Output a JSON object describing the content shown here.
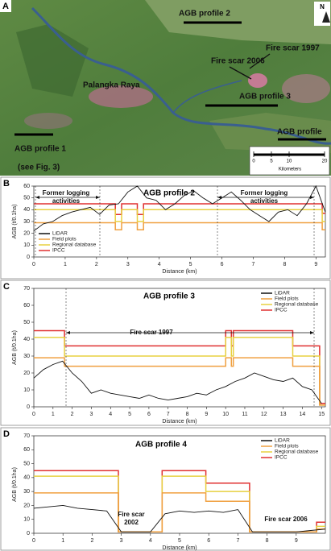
{
  "map": {
    "panel": "A",
    "north": "N",
    "labels": [
      "AGB profile 2",
      "Fire scar 1997",
      "Fire scar 2006",
      "Palangka Raya",
      "AGB profile 3",
      "AGB profile",
      "AGB profile 1",
      "(see Fig. 3)"
    ],
    "scale": {
      "ticks": [
        0,
        5,
        10,
        20
      ],
      "unit": "Kilometers"
    }
  },
  "chart_data": [
    {
      "type": "line",
      "panel": "B",
      "title": "AGB profile 2",
      "xlabel": "Distance (km)",
      "ylabel": "AGB (t/0.1ha)",
      "xlim": [
        0,
        9.3
      ],
      "xticks": [
        0,
        1,
        2,
        3,
        4,
        5,
        6,
        7,
        8,
        9
      ],
      "ylim": [
        0,
        60
      ],
      "yticks": [
        0,
        10,
        20,
        30,
        40,
        50,
        60
      ],
      "legend": "lower left",
      "annotations": [
        "Former logging",
        "activities",
        "Former logging",
        "activities"
      ],
      "series": [
        {
          "name": "LiDAR",
          "color": "#111111",
          "x": [
            0,
            0.3,
            0.6,
            0.9,
            1.2,
            1.5,
            1.8,
            2.1,
            2.4,
            2.7,
            3,
            3.3,
            3.6,
            3.9,
            4.2,
            4.5,
            4.8,
            5.1,
            5.4,
            5.7,
            6,
            6.3,
            6.6,
            6.9,
            7.2,
            7.5,
            7.8,
            8.1,
            8.4,
            8.7,
            9,
            9.3
          ],
          "values": [
            22,
            28,
            30,
            35,
            38,
            40,
            42,
            36,
            44,
            45,
            55,
            60,
            50,
            48,
            40,
            45,
            52,
            56,
            50,
            45,
            50,
            55,
            48,
            40,
            35,
            30,
            38,
            40,
            35,
            45,
            60,
            38
          ]
        },
        {
          "name": "Field plots",
          "color": "#f0a040",
          "x": [
            0,
            2.6,
            2.6,
            2.8,
            2.8,
            3.3,
            3.3,
            3.5,
            3.5,
            9.2,
            9.2,
            9.3
          ],
          "values": [
            29,
            29,
            23,
            23,
            29,
            29,
            23,
            23,
            29,
            29,
            23,
            23
          ]
        },
        {
          "name": "Regional database",
          "color": "#e8d040",
          "x": [
            0,
            2.6,
            2.6,
            2.8,
            2.8,
            3.3,
            3.3,
            3.5,
            3.5,
            9.2,
            9.2,
            9.3
          ],
          "values": [
            40,
            40,
            30,
            30,
            40,
            40,
            30,
            30,
            40,
            40,
            30,
            30
          ]
        },
        {
          "name": "IPCC",
          "color": "#e03030",
          "x": [
            0,
            2.6,
            2.6,
            2.8,
            2.8,
            3.3,
            3.3,
            3.5,
            3.5,
            9.2,
            9.2,
            9.3
          ],
          "values": [
            45,
            45,
            36,
            36,
            45,
            45,
            36,
            36,
            45,
            45,
            37,
            37
          ]
        }
      ]
    },
    {
      "type": "line",
      "panel": "C",
      "title": "AGB profile 3",
      "xlabel": "Distance (km)",
      "ylabel": "AGB (t/0.1ha)",
      "xlim": [
        0,
        15.2
      ],
      "xticks": [
        0,
        1,
        2,
        3,
        4,
        5,
        6,
        7,
        8,
        9,
        10,
        11,
        12,
        13,
        14,
        15
      ],
      "ylim": [
        0,
        70
      ],
      "yticks": [
        0,
        10,
        20,
        30,
        40,
        50,
        60,
        70
      ],
      "legend": "upper right",
      "annotations": [
        "Fire scar 1997"
      ],
      "series": [
        {
          "name": "LiDAR",
          "color": "#111111",
          "x": [
            0,
            0.5,
            1,
            1.5,
            2,
            2.5,
            3,
            3.5,
            4,
            4.5,
            5,
            5.5,
            6,
            6.5,
            7,
            7.5,
            8,
            8.5,
            9,
            9.5,
            10,
            10.5,
            11,
            11.5,
            12,
            12.5,
            13,
            13.5,
            14,
            14.5,
            15
          ],
          "values": [
            17,
            22,
            25,
            27,
            20,
            15,
            8,
            10,
            8,
            7,
            6,
            5,
            7,
            5,
            4,
            5,
            6,
            8,
            7,
            10,
            12,
            15,
            17,
            20,
            18,
            16,
            15,
            17,
            12,
            10,
            2
          ]
        },
        {
          "name": "Field plots",
          "color": "#f0a040",
          "x": [
            0,
            1.6,
            1.6,
            10,
            10,
            10.3,
            10.3,
            10.4,
            10.4,
            13.5,
            13.5,
            14.9,
            14.9,
            15.2
          ],
          "values": [
            29,
            29,
            24,
            24,
            29,
            29,
            24,
            24,
            29,
            29,
            24,
            24,
            1,
            1
          ]
        },
        {
          "name": "Regional database",
          "color": "#e8d040",
          "x": [
            0,
            1.6,
            1.6,
            10,
            10,
            10.3,
            10.3,
            10.4,
            10.4,
            13.5,
            13.5,
            14.9,
            14.9,
            15.2
          ],
          "values": [
            41,
            41,
            30,
            30,
            41,
            41,
            30,
            30,
            41,
            41,
            30,
            30,
            1,
            1
          ]
        },
        {
          "name": "IPCC",
          "color": "#e03030",
          "x": [
            0,
            1.6,
            1.6,
            10,
            10,
            10.3,
            10.3,
            10.4,
            10.4,
            13.5,
            13.5,
            14.9,
            14.9,
            15.2
          ],
          "values": [
            45,
            45,
            36,
            36,
            45,
            45,
            36,
            36,
            45,
            45,
            36,
            36,
            2,
            2
          ]
        }
      ]
    },
    {
      "type": "line",
      "panel": "D",
      "title": "AGB profile 4",
      "xlabel": "Distance (km)",
      "ylabel": "AGB (t/0.1ha)",
      "xlim": [
        0,
        10
      ],
      "xticks": [
        0,
        1,
        2,
        3,
        4,
        5,
        6,
        7,
        8,
        9
      ],
      "ylim": [
        0,
        70
      ],
      "yticks": [
        0,
        10,
        20,
        30,
        40,
        50,
        60,
        70
      ],
      "legend": "upper right",
      "annotations": [
        "Fire scar",
        "2002",
        "Fire scar 2006"
      ],
      "series": [
        {
          "name": "LiDAR",
          "color": "#111111",
          "x": [
            0,
            0.5,
            1,
            1.5,
            2,
            2.5,
            3,
            3.5,
            4,
            4.5,
            5,
            5.5,
            6,
            6.5,
            7,
            7.5,
            8,
            8.5,
            9,
            9.5,
            10
          ],
          "values": [
            18,
            19,
            20,
            18,
            17,
            16,
            1,
            1,
            1,
            14,
            16,
            15,
            16,
            15,
            17,
            1,
            1,
            1,
            1,
            2,
            3
          ]
        },
        {
          "name": "Field plots",
          "color": "#f0a040",
          "x": [
            0,
            2.9,
            2.9,
            4.4,
            4.4,
            5.9,
            5.9,
            7.4,
            7.4,
            9.7,
            9.7,
            10
          ],
          "values": [
            29,
            29,
            1,
            1,
            29,
            29,
            23,
            23,
            1,
            1,
            3,
            3
          ]
        },
        {
          "name": "Regional database",
          "color": "#e8d040",
          "x": [
            0,
            2.9,
            2.9,
            4.4,
            4.4,
            5.9,
            5.9,
            7.4,
            7.4,
            9.7,
            9.7,
            10
          ],
          "values": [
            41,
            41,
            1,
            1,
            41,
            41,
            30,
            30,
            1,
            1,
            5,
            5
          ]
        },
        {
          "name": "IPCC",
          "color": "#e03030",
          "x": [
            0,
            2.9,
            2.9,
            4.4,
            4.4,
            5.9,
            5.9,
            7.4,
            7.4,
            9.7,
            9.7,
            10
          ],
          "values": [
            45,
            45,
            1,
            1,
            45,
            45,
            36,
            36,
            1,
            1,
            8,
            8
          ]
        }
      ]
    }
  ]
}
